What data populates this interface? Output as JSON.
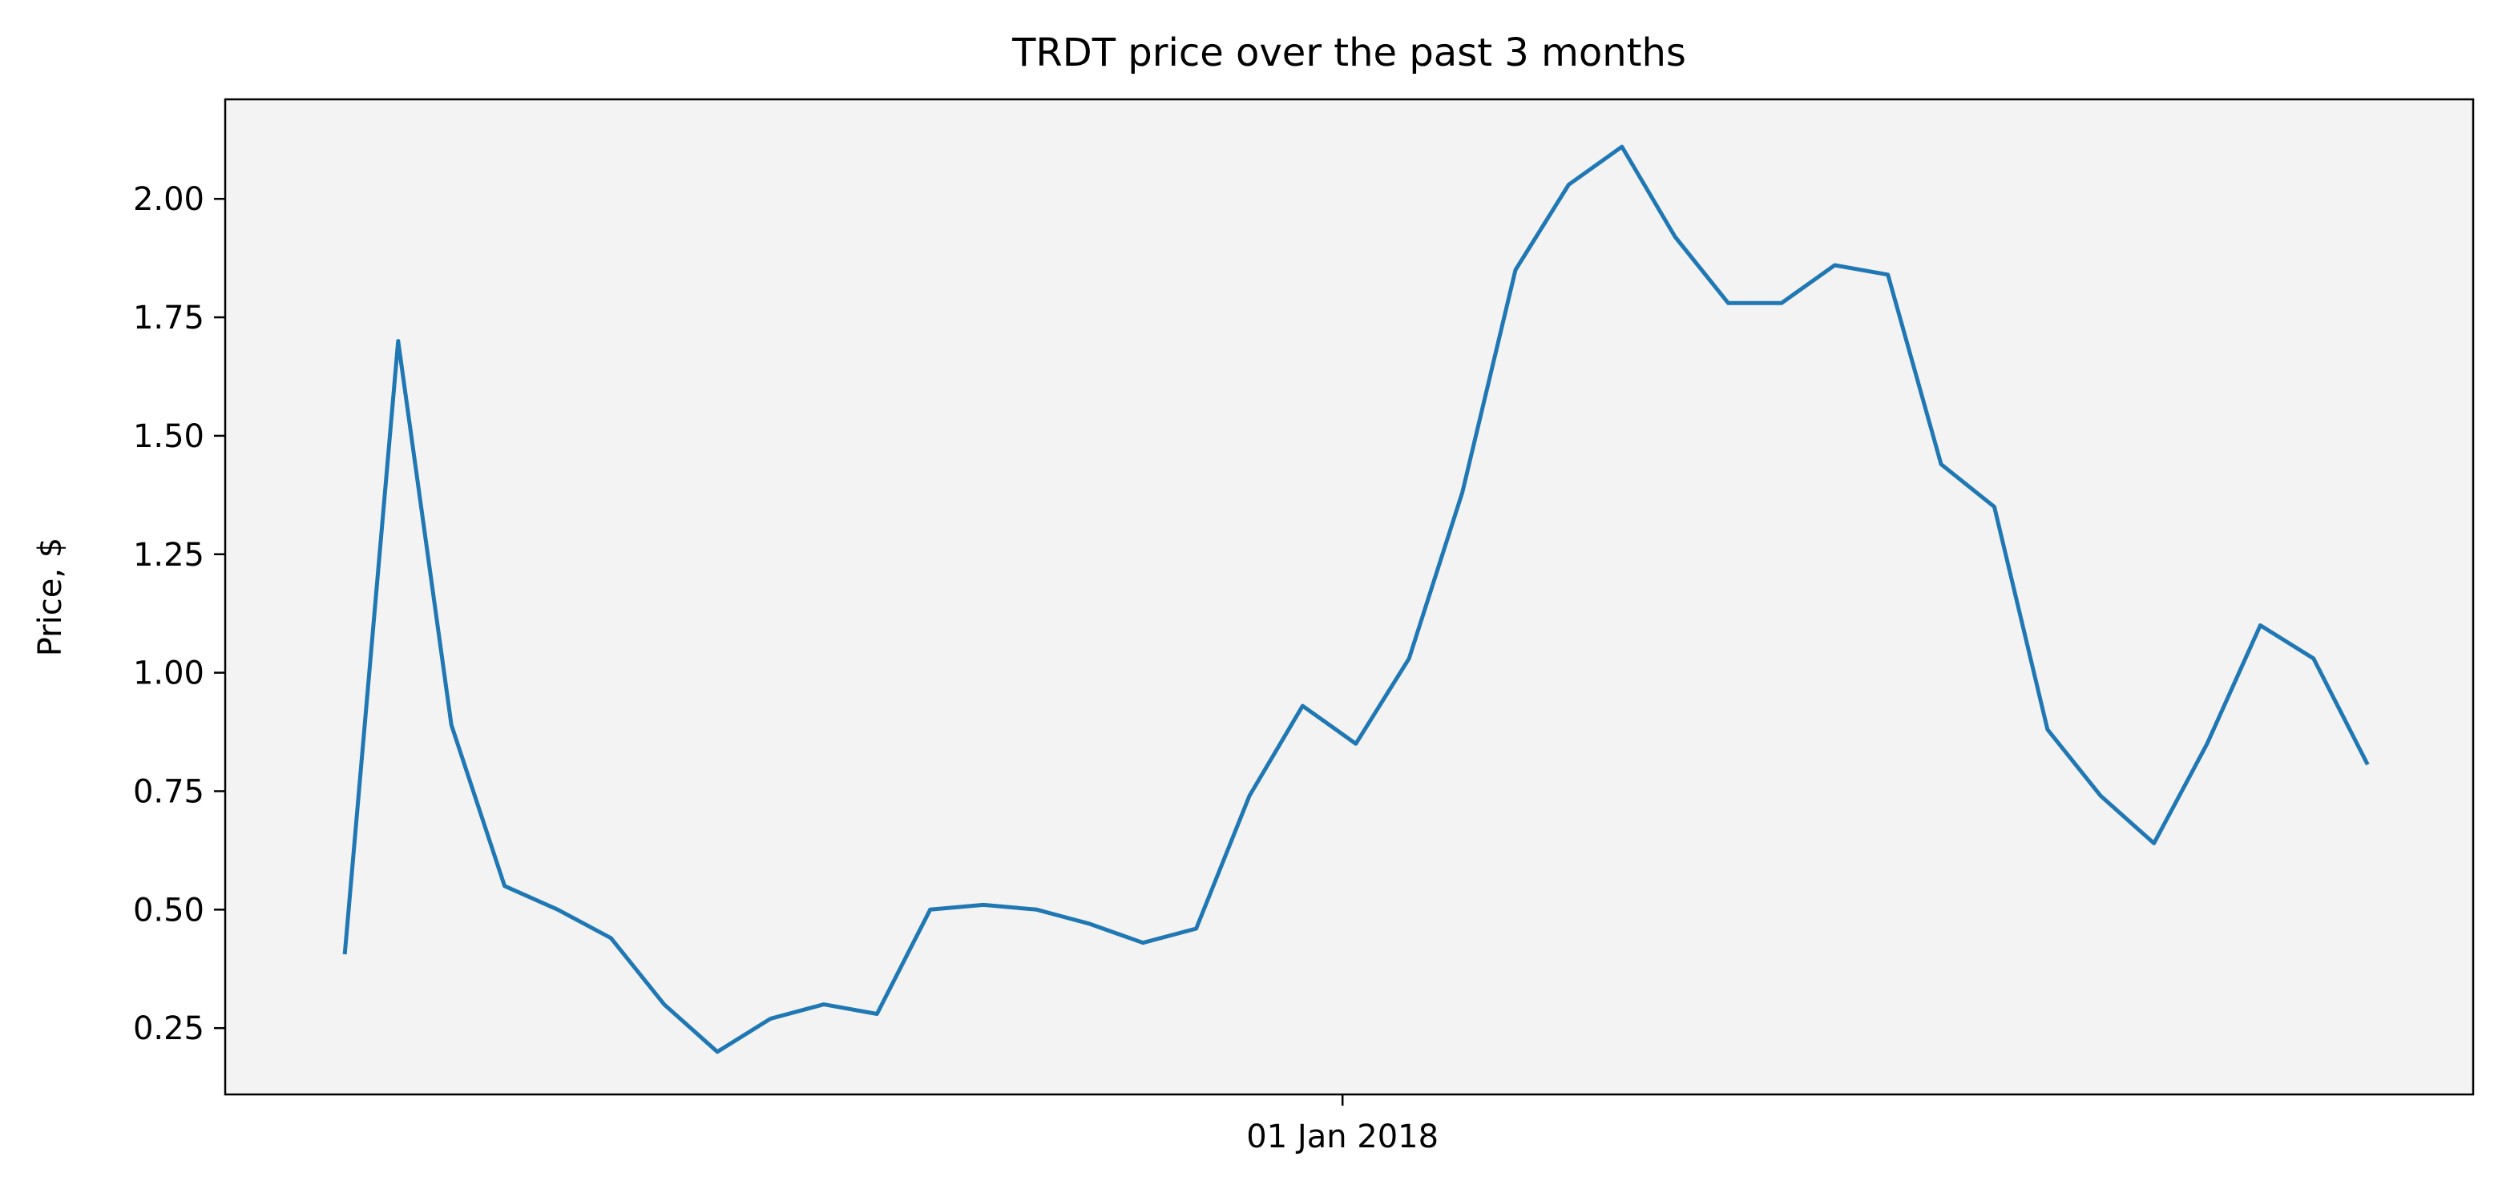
{
  "chart_data": {
    "type": "line",
    "title": "TRDT price over the past 3 months",
    "xlabel": "",
    "ylabel": "Price, $",
    "xlim": [
      "2017-10-09",
      "2018-03-27"
    ],
    "ylim": [
      0.11,
      2.21
    ],
    "x_ticks": [
      {
        "value": "2018-01-01",
        "label": "01 Jan 2018"
      }
    ],
    "y_ticks": [
      {
        "value": 0.25,
        "label": "0.25"
      },
      {
        "value": 0.5,
        "label": "0.50"
      },
      {
        "value": 0.75,
        "label": "0.75"
      },
      {
        "value": 1.0,
        "label": "1.00"
      },
      {
        "value": 1.25,
        "label": "1.25"
      },
      {
        "value": 1.5,
        "label": "1.50"
      },
      {
        "value": 1.75,
        "label": "1.75"
      },
      {
        "value": 2.0,
        "label": "2.00"
      }
    ],
    "grid": false,
    "legend": "none",
    "series": [
      {
        "color": "#1f77b4",
        "points": [
          {
            "x": "2017-10-18",
            "y": 0.41
          },
          {
            "x": "2017-10-22",
            "y": 1.7
          },
          {
            "x": "2017-10-26",
            "y": 0.89
          },
          {
            "x": "2017-10-30",
            "y": 0.55
          },
          {
            "x": "2017-11-03",
            "y": 0.5
          },
          {
            "x": "2017-11-07",
            "y": 0.44
          },
          {
            "x": "2017-11-11",
            "y": 0.3
          },
          {
            "x": "2017-11-15",
            "y": 0.2
          },
          {
            "x": "2017-11-19",
            "y": 0.27
          },
          {
            "x": "2017-11-23",
            "y": 0.3
          },
          {
            "x": "2017-11-27",
            "y": 0.28
          },
          {
            "x": "2017-12-01",
            "y": 0.5
          },
          {
            "x": "2017-12-05",
            "y": 0.51
          },
          {
            "x": "2017-12-09",
            "y": 0.5
          },
          {
            "x": "2017-12-13",
            "y": 0.47
          },
          {
            "x": "2017-12-17",
            "y": 0.43
          },
          {
            "x": "2017-12-21",
            "y": 0.46
          },
          {
            "x": "2017-12-25",
            "y": 0.74
          },
          {
            "x": "2017-12-29",
            "y": 0.93
          },
          {
            "x": "2018-01-02",
            "y": 0.85
          },
          {
            "x": "2018-01-06",
            "y": 1.03
          },
          {
            "x": "2018-01-10",
            "y": 1.38
          },
          {
            "x": "2018-01-14",
            "y": 1.85
          },
          {
            "x": "2018-01-18",
            "y": 2.03
          },
          {
            "x": "2018-01-22",
            "y": 2.11
          },
          {
            "x": "2018-01-26",
            "y": 1.92
          },
          {
            "x": "2018-01-30",
            "y": 1.78
          },
          {
            "x": "2018-02-03",
            "y": 1.78
          },
          {
            "x": "2018-02-07",
            "y": 1.86
          },
          {
            "x": "2018-02-11",
            "y": 1.84
          },
          {
            "x": "2018-02-15",
            "y": 1.44
          },
          {
            "x": "2018-02-19",
            "y": 1.35
          },
          {
            "x": "2018-02-23",
            "y": 0.88
          },
          {
            "x": "2018-02-27",
            "y": 0.74
          },
          {
            "x": "2018-03-03",
            "y": 0.64
          },
          {
            "x": "2018-03-07",
            "y": 0.85
          },
          {
            "x": "2018-03-11",
            "y": 1.1
          },
          {
            "x": "2018-03-15",
            "y": 1.03
          },
          {
            "x": "2018-03-19",
            "y": 0.81
          }
        ]
      }
    ]
  },
  "colors": {
    "plot_background": "#f3f3f3",
    "line": "#1f77b4",
    "axes": "#000000"
  }
}
